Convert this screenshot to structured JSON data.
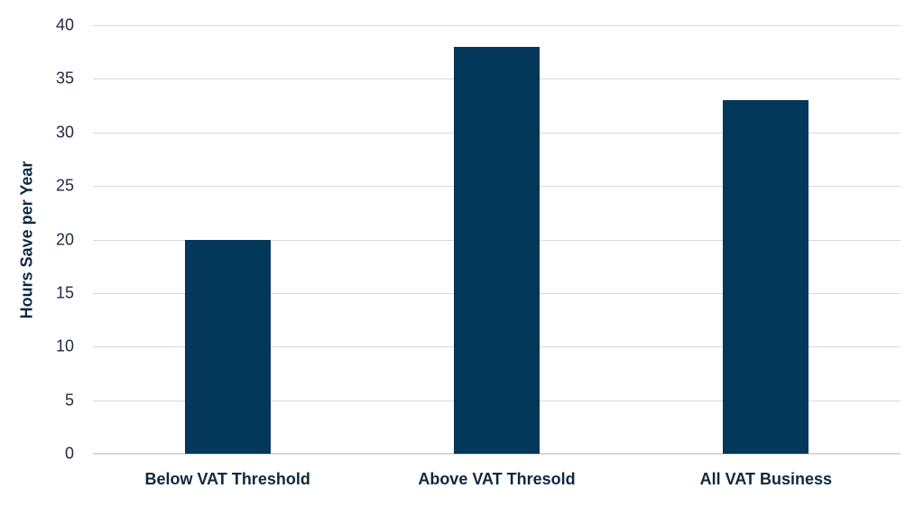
{
  "chart_data": {
    "type": "bar",
    "title": "",
    "xlabel": "",
    "ylabel": "Hours Save per Year",
    "categories": [
      "Below VAT Threshold",
      "Above VAT Thresold",
      "All VAT Business"
    ],
    "values": [
      20,
      38,
      33
    ],
    "ylim": [
      0,
      40
    ],
    "yticks": [
      0,
      5,
      10,
      15,
      20,
      25,
      30,
      35,
      40
    ],
    "grid": true,
    "legend": null,
    "bar_color": "#03385a"
  }
}
